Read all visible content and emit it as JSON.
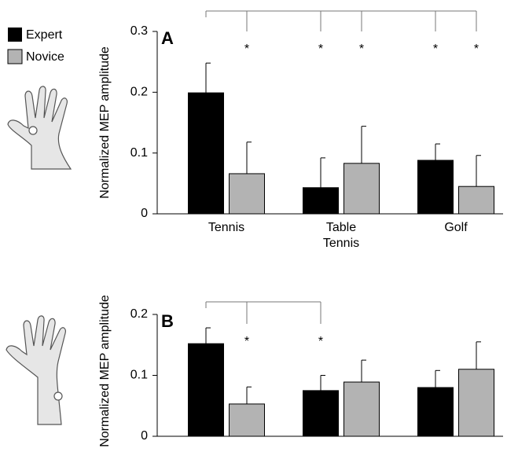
{
  "chart_data": [
    {
      "type": "bar",
      "panel_label": "A",
      "ylabel": "Normalized MEP amplitude",
      "categories": [
        "Tennis",
        "Table Tennis",
        "Golf"
      ],
      "series": [
        {
          "name": "Expert",
          "color": "#000000",
          "values": [
            0.199,
            0.043,
            0.088
          ],
          "errors": [
            0.049,
            0.049,
            0.027
          ]
        },
        {
          "name": "Novice",
          "color": "#b3b3b3",
          "values": [
            0.066,
            0.083,
            0.045
          ],
          "errors": [
            0.052,
            0.061,
            0.051
          ]
        }
      ],
      "ylim": [
        0,
        0.3
      ],
      "yticks": [
        0,
        0.1,
        0.2,
        0.3
      ],
      "significance_marks": [
        "*",
        "*",
        "*",
        "*",
        "*"
      ]
    },
    {
      "type": "bar",
      "panel_label": "B",
      "ylabel": "Normalized MEP amplitude",
      "categories": [
        null,
        null,
        null
      ],
      "series": [
        {
          "color": "#000000",
          "values": [
            0.152,
            0.075,
            0.08
          ],
          "errors": [
            0.026,
            0.025,
            0.028
          ]
        },
        {
          "color": "#b3b3b3",
          "values": [
            0.053,
            0.089,
            0.11
          ],
          "errors": [
            0.028,
            0.036,
            0.045
          ]
        }
      ],
      "ylim": [
        0,
        0.2
      ],
      "yticks": [
        0,
        0.1,
        0.2
      ],
      "significance_marks": [
        "*",
        "*"
      ]
    }
  ]
}
